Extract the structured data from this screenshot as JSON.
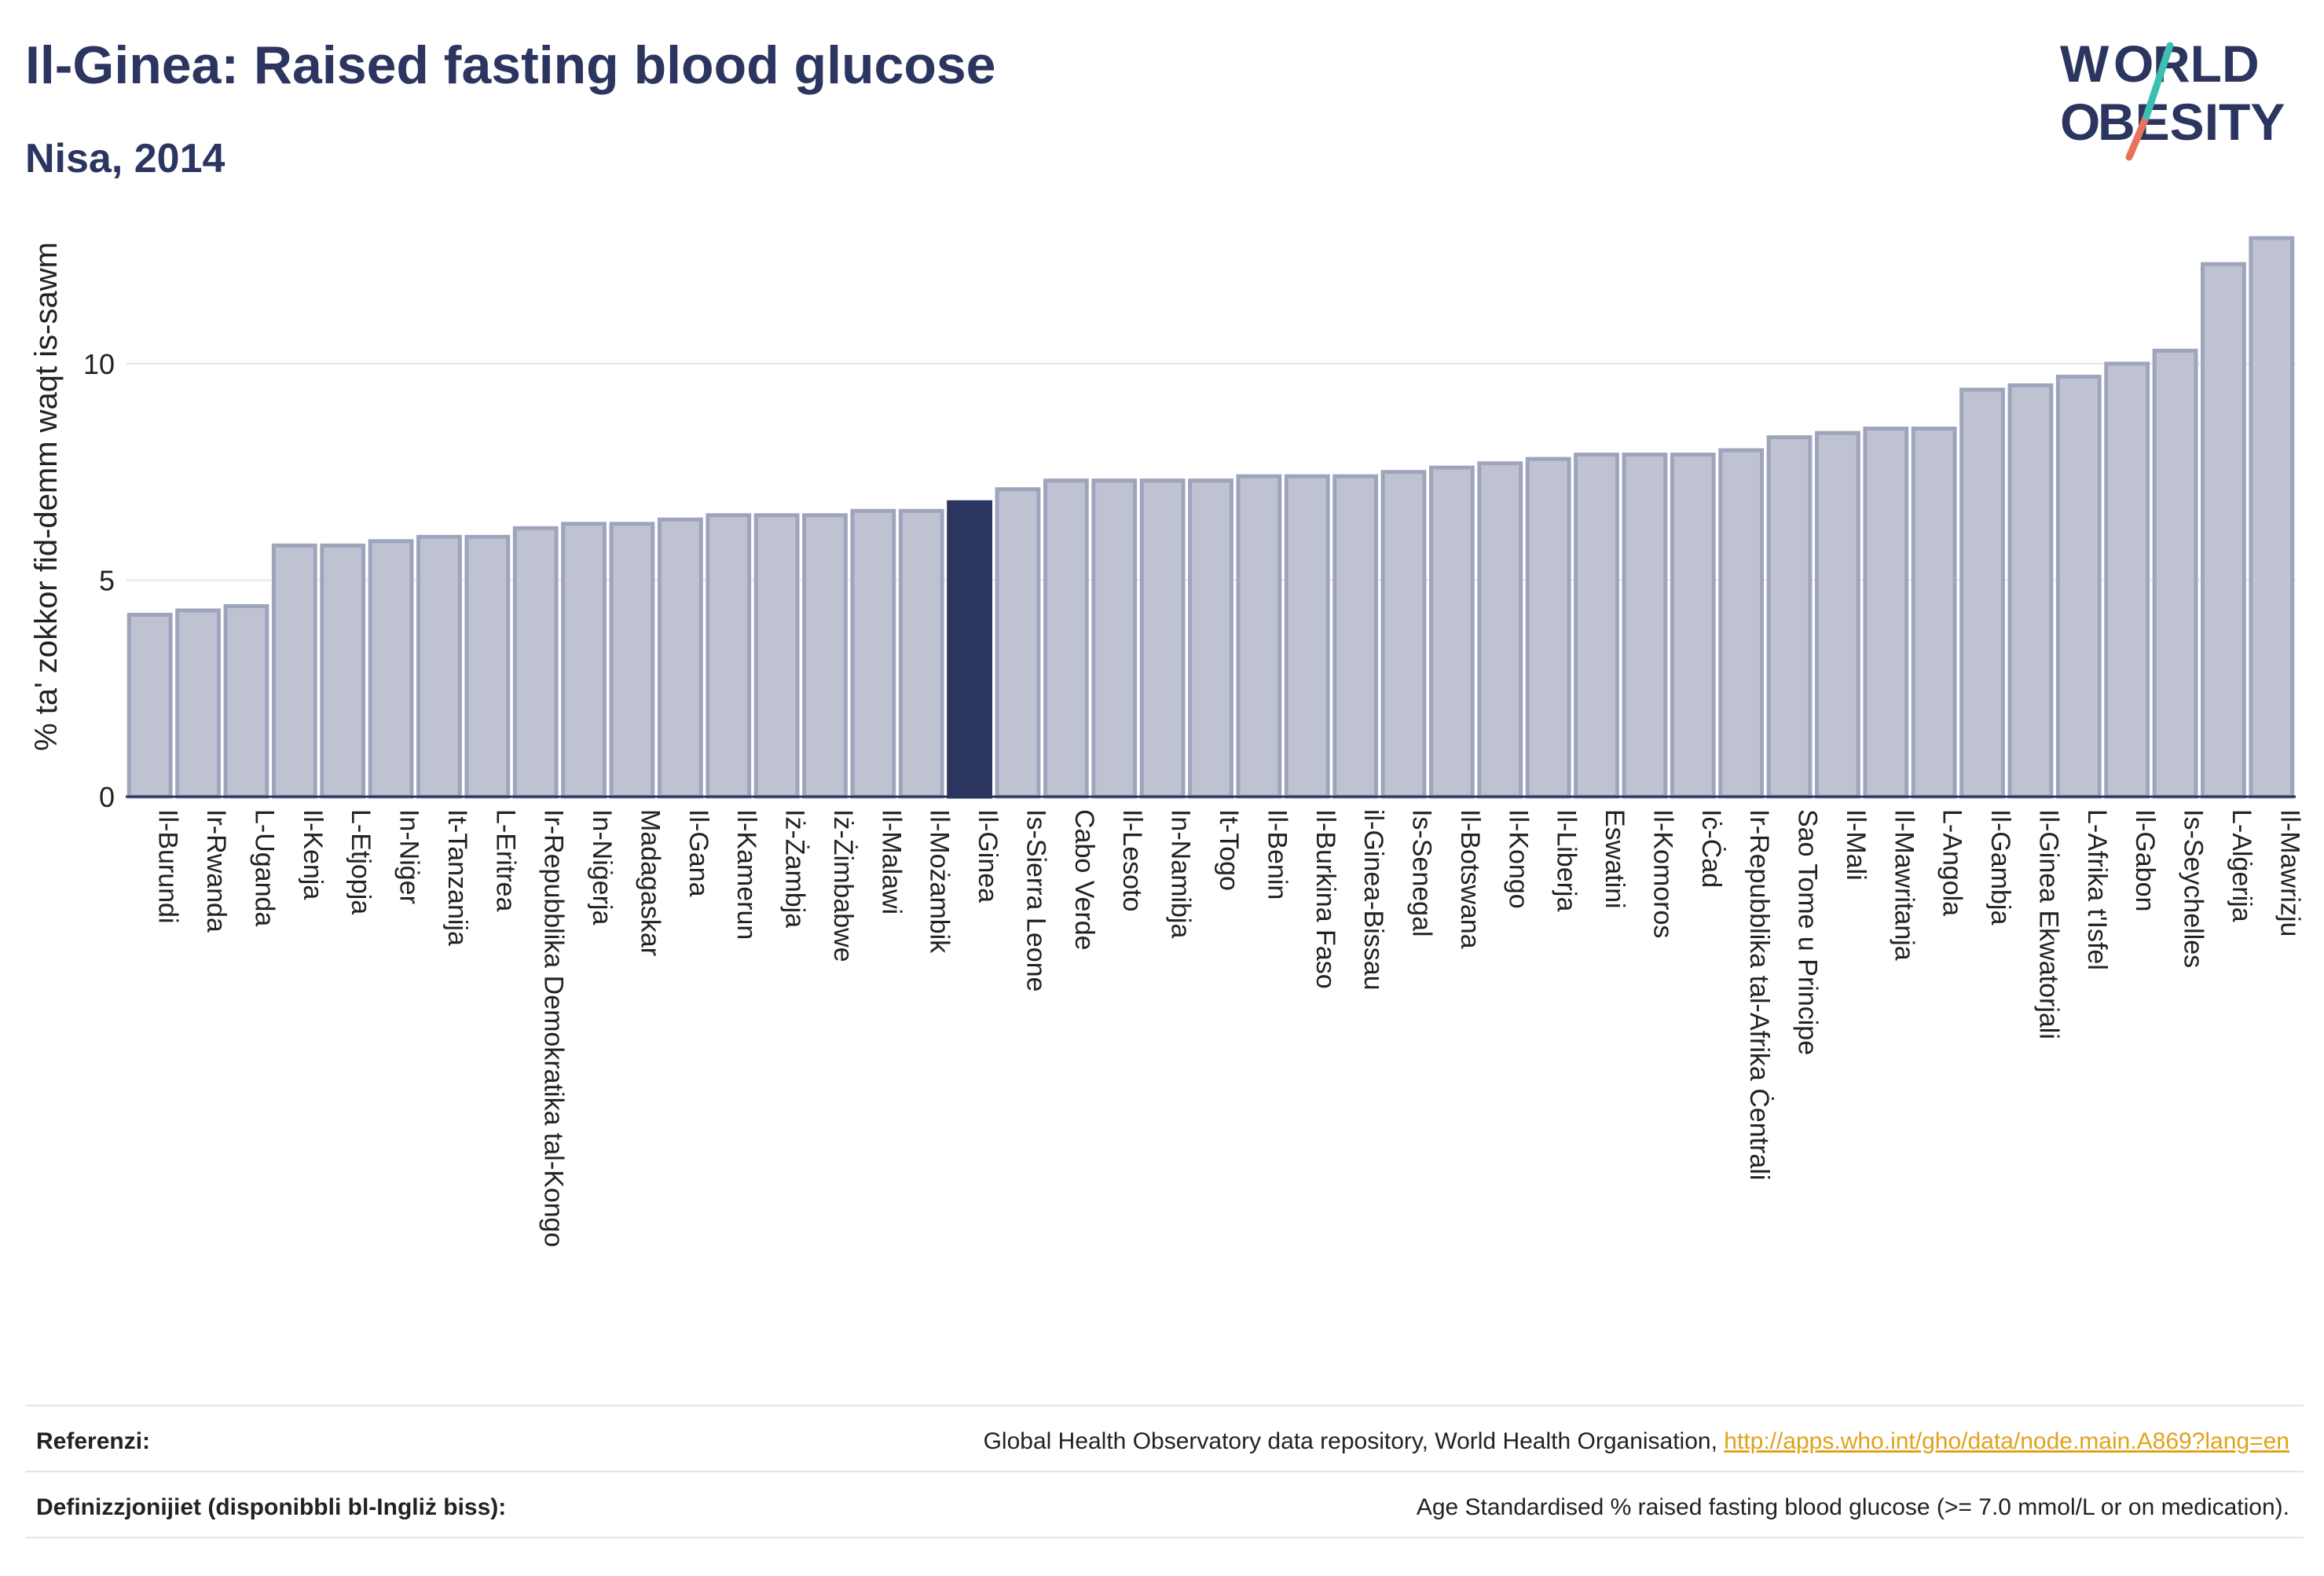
{
  "title": "Il-Ginea: Raised fasting blood glucose",
  "subtitle": "Nisa, 2014",
  "logo": {
    "line1": "W",
    "line1b": "RLD",
    "line2": "BESITY",
    "text": "WORLD OBESITY"
  },
  "colors": {
    "bar": "#bfc3d1",
    "bar_stroke": "#9ea4bb",
    "highlight": "#2b3560",
    "grid": "#e6e6e6",
    "axis": "#2b3560",
    "text": "#222222",
    "link": "#e0a21b"
  },
  "chart_data": {
    "type": "bar",
    "ylabel": "% ta' zokkor fid-demm waqt is-sawm",
    "ylim": [
      0,
      13.5
    ],
    "yticks": [
      0,
      5,
      10
    ],
    "grid": true,
    "highlight_category": "Il-Ginea",
    "categories": [
      "Il-Burundi",
      "Ir-Rwanda",
      "L-Uganda",
      "Il-Kenja",
      "L-Etjopja",
      "In-Niġer",
      "It-Tanzanija",
      "L-Eritrea",
      "Ir-Repubblika Demokratika tal-Kongo",
      "In-Niġerja",
      "Madagaskar",
      "Il-Gana",
      "Il-Kamerun",
      "Iż-Żambja",
      "Iż-Żimbabwe",
      "Il-Malawi",
      "Il-Możambik",
      "Il-Ginea",
      "Is-Sierra Leone",
      "Cabo Verde",
      "Il-Lesoto",
      "In-Namibja",
      "It-Togo",
      "Il-Benin",
      "Il-Burkina Faso",
      "il-Ginea-Bissau",
      "Is-Senegal",
      "Il-Botswana",
      "Il-Kongo",
      "Il-Liberja",
      "Eswatini",
      "Il-Komoros",
      "Iċ-Ċad",
      "Ir-Repubblika tal-Afrika Ċentrali",
      "Sao Tome u Principe",
      "Il-Mali",
      "Il-Mawritanja",
      "L-Angola",
      "Il-Gambja",
      "Il-Ginea Ekwatorjali",
      "L-Afrika t'Isfel",
      "Il-Gabon",
      "Is-Seychelles",
      "L-Alġerija",
      "Il-Mawrizju"
    ],
    "values": [
      4.2,
      4.3,
      4.4,
      5.8,
      5.8,
      5.9,
      6.0,
      6.0,
      6.2,
      6.3,
      6.3,
      6.4,
      6.5,
      6.5,
      6.5,
      6.6,
      6.6,
      6.8,
      7.1,
      7.3,
      7.3,
      7.3,
      7.3,
      7.4,
      7.4,
      7.4,
      7.5,
      7.6,
      7.7,
      7.8,
      7.9,
      7.9,
      7.9,
      8.0,
      8.3,
      8.4,
      8.5,
      8.5,
      9.4,
      9.5,
      9.7,
      10.0,
      10.3,
      12.3,
      12.9
    ]
  },
  "footer": {
    "ref_label": "Referenzi:",
    "ref_text": "Global Health Observatory data repository, World Health Organisation, ",
    "ref_link": "http://apps.who.int/gho/data/node.main.A869?lang=en",
    "def_label": "Definizzjonijiet (disponibbli bl-Ingliż biss):",
    "def_text": "Age Standardised % raised fasting blood glucose (>= 7.0 mmol/L or on medication)."
  }
}
